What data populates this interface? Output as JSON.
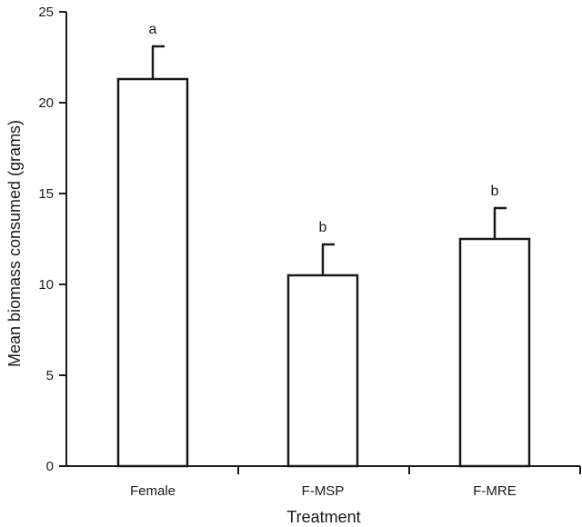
{
  "chart_data": {
    "type": "bar",
    "categories": [
      "Female",
      "F-MSP",
      "F-MRE"
    ],
    "values": [
      21.3,
      10.5,
      12.5
    ],
    "error_upper": [
      23.1,
      12.2,
      14.2
    ],
    "significance_letters": [
      "a",
      "b",
      "b"
    ],
    "xlabel": "Treatment",
    "ylabel": "Mean biomass consumed (grams)",
    "ylim": [
      0,
      25
    ],
    "yticks": [
      0,
      5,
      10,
      15,
      20,
      25
    ],
    "grid": false,
    "legend": "none"
  }
}
